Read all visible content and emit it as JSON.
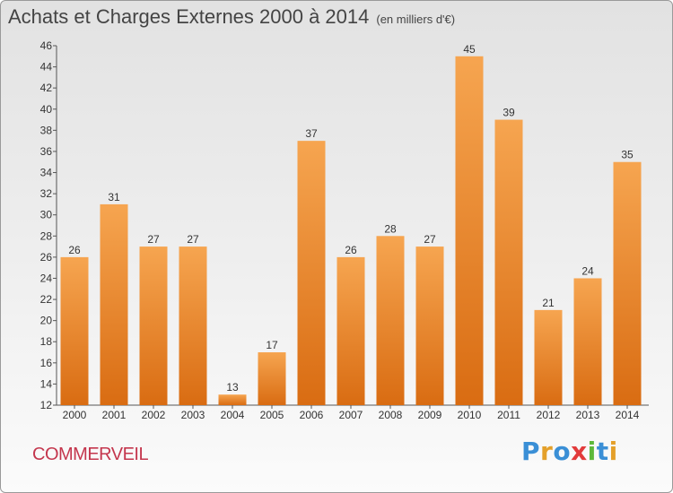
{
  "header": {
    "title": "Achats et Charges Externes 2000 à 2014",
    "subtitle": "(en milliers d'€)"
  },
  "footer": {
    "commune": "COMMERVEIL",
    "logo_letters": [
      {
        "char": "P",
        "color": "#3a8fd6"
      },
      {
        "char": "r",
        "color": "#e4a02a"
      },
      {
        "char": "o",
        "color": "#3a8fd6"
      },
      {
        "char": "x",
        "color": "#e23b3b"
      },
      {
        "char": "i",
        "color": "#5db83a"
      },
      {
        "char": "t",
        "color": "#3a8fd6"
      },
      {
        "char": "i",
        "color": "#e4a02a"
      }
    ]
  },
  "chart_data": {
    "type": "bar",
    "categories": [
      "2000",
      "2001",
      "2002",
      "2003",
      "2004",
      "2005",
      "2006",
      "2007",
      "2008",
      "2009",
      "2010",
      "2011",
      "2012",
      "2013",
      "2014"
    ],
    "values": [
      26,
      31,
      27,
      27,
      13,
      17,
      37,
      26,
      28,
      27,
      45,
      39,
      21,
      24,
      35
    ],
    "title": "Achats et Charges Externes 2000 à 2014",
    "subtitle": "(en milliers d'€)",
    "xlabel": "",
    "ylabel": "",
    "ylim": [
      12,
      46
    ],
    "yticks": [
      12,
      14,
      16,
      18,
      20,
      22,
      24,
      26,
      28,
      30,
      32,
      34,
      36,
      38,
      40,
      42,
      44,
      46
    ],
    "grid": false,
    "bar_color_top": "#f6a550",
    "bar_color_bottom": "#d96c12",
    "data_labels": true
  }
}
